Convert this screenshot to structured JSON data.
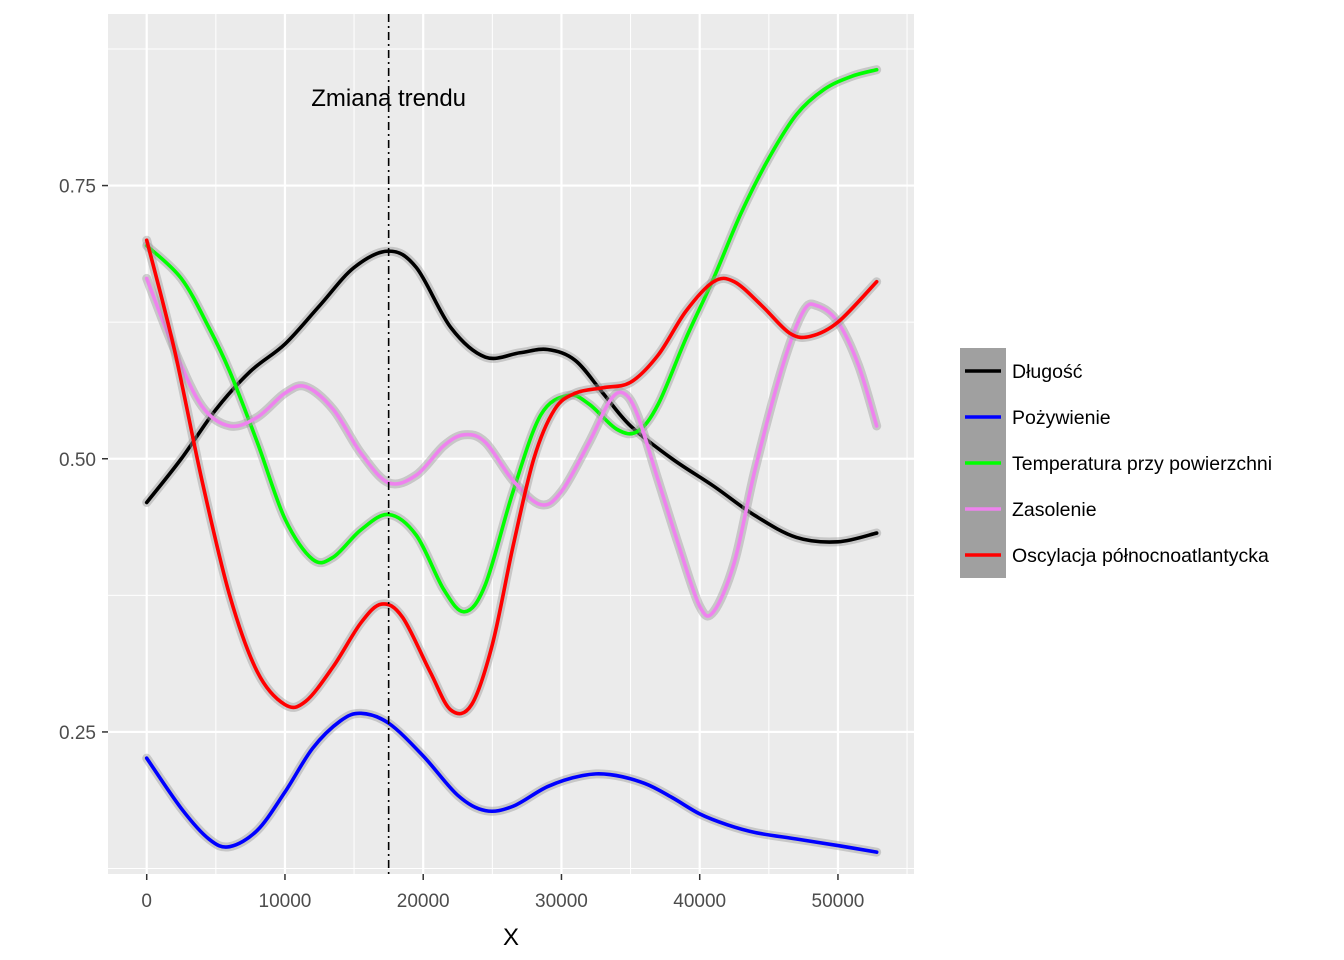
{
  "chart_data": {
    "type": "line",
    "title": "",
    "xlabel": "X",
    "ylabel": "",
    "xlim": [
      -2800,
      55500
    ],
    "ylim": [
      0.12,
      0.907
    ],
    "x_ticks": [
      0,
      10000,
      20000,
      30000,
      40000,
      50000
    ],
    "x_tick_labels": [
      "0",
      "10000",
      "20000",
      "30000",
      "40000",
      "50000"
    ],
    "y_ticks": [
      0.25,
      0.5,
      0.75
    ],
    "y_tick_labels": [
      "0.25",
      "0.50",
      "0.75"
    ],
    "grid": true,
    "legend_position": "right",
    "annotation": {
      "text": "Zmiana trendu",
      "x": 17500,
      "y": 0.83
    },
    "vline": {
      "x": 17500,
      "style": "dashdot"
    },
    "series": [
      {
        "name": "Długość",
        "color": "#000000",
        "points": [
          [
            0,
            0.46
          ],
          [
            2500,
            0.5
          ],
          [
            5000,
            0.545
          ],
          [
            7500,
            0.58
          ],
          [
            10000,
            0.605
          ],
          [
            12500,
            0.64
          ],
          [
            15000,
            0.675
          ],
          [
            17500,
            0.69
          ],
          [
            19500,
            0.675
          ],
          [
            22000,
            0.62
          ],
          [
            24500,
            0.593
          ],
          [
            27000,
            0.597
          ],
          [
            29000,
            0.6
          ],
          [
            31000,
            0.59
          ],
          [
            33000,
            0.56
          ],
          [
            35000,
            0.53
          ],
          [
            38000,
            0.5
          ],
          [
            41000,
            0.475
          ],
          [
            44000,
            0.448
          ],
          [
            47000,
            0.428
          ],
          [
            50000,
            0.424
          ],
          [
            52800,
            0.432
          ]
        ]
      },
      {
        "name": "Pożywienie",
        "color": "#0000ff",
        "points": [
          [
            0,
            0.226
          ],
          [
            2500,
            0.18
          ],
          [
            4500,
            0.152
          ],
          [
            6000,
            0.145
          ],
          [
            8000,
            0.16
          ],
          [
            10000,
            0.195
          ],
          [
            12000,
            0.235
          ],
          [
            14000,
            0.26
          ],
          [
            15500,
            0.267
          ],
          [
            17500,
            0.258
          ],
          [
            20000,
            0.228
          ],
          [
            22500,
            0.192
          ],
          [
            24500,
            0.178
          ],
          [
            26500,
            0.182
          ],
          [
            29000,
            0.2
          ],
          [
            31500,
            0.21
          ],
          [
            33500,
            0.211
          ],
          [
            36000,
            0.203
          ],
          [
            38000,
            0.19
          ],
          [
            40000,
            0.175
          ],
          [
            42000,
            0.165
          ],
          [
            44000,
            0.158
          ],
          [
            47000,
            0.152
          ],
          [
            50000,
            0.146
          ],
          [
            52800,
            0.14
          ]
        ]
      },
      {
        "name": "Temperatura przy powierzchni",
        "color": "#00ff00",
        "points": [
          [
            0,
            0.695
          ],
          [
            2500,
            0.665
          ],
          [
            4500,
            0.62
          ],
          [
            6000,
            0.58
          ],
          [
            8000,
            0.515
          ],
          [
            10000,
            0.445
          ],
          [
            12000,
            0.408
          ],
          [
            13500,
            0.41
          ],
          [
            15500,
            0.435
          ],
          [
            17500,
            0.449
          ],
          [
            19500,
            0.43
          ],
          [
            21500,
            0.38
          ],
          [
            23000,
            0.36
          ],
          [
            24500,
            0.385
          ],
          [
            26500,
            0.47
          ],
          [
            28500,
            0.54
          ],
          [
            30500,
            0.558
          ],
          [
            32000,
            0.55
          ],
          [
            34000,
            0.527
          ],
          [
            35500,
            0.525
          ],
          [
            37000,
            0.55
          ],
          [
            39000,
            0.61
          ],
          [
            41000,
            0.665
          ],
          [
            43000,
            0.725
          ],
          [
            45000,
            0.775
          ],
          [
            47000,
            0.815
          ],
          [
            49000,
            0.838
          ],
          [
            51000,
            0.85
          ],
          [
            52800,
            0.856
          ]
        ]
      },
      {
        "name": "Zasolenie",
        "color": "#ee82ee",
        "points": [
          [
            0,
            0.665
          ],
          [
            2000,
            0.6
          ],
          [
            4000,
            0.548
          ],
          [
            6000,
            0.53
          ],
          [
            8000,
            0.538
          ],
          [
            10000,
            0.56
          ],
          [
            11500,
            0.566
          ],
          [
            13500,
            0.545
          ],
          [
            15500,
            0.505
          ],
          [
            17500,
            0.478
          ],
          [
            19500,
            0.485
          ],
          [
            21500,
            0.512
          ],
          [
            23000,
            0.522
          ],
          [
            24500,
            0.515
          ],
          [
            26500,
            0.48
          ],
          [
            28500,
            0.458
          ],
          [
            30000,
            0.47
          ],
          [
            32000,
            0.515
          ],
          [
            33500,
            0.553
          ],
          [
            34500,
            0.56
          ],
          [
            35500,
            0.54
          ],
          [
            37000,
            0.48
          ],
          [
            38500,
            0.42
          ],
          [
            40000,
            0.365
          ],
          [
            41000,
            0.36
          ],
          [
            42500,
            0.405
          ],
          [
            44000,
            0.49
          ],
          [
            46000,
            0.585
          ],
          [
            47500,
            0.635
          ],
          [
            48500,
            0.64
          ],
          [
            50000,
            0.625
          ],
          [
            51500,
            0.585
          ],
          [
            52800,
            0.53
          ]
        ]
      },
      {
        "name": "Oscylacja północnoatlantycka",
        "color": "#ff0000",
        "points": [
          [
            0,
            0.7
          ],
          [
            2000,
            0.6
          ],
          [
            4000,
            0.48
          ],
          [
            6000,
            0.375
          ],
          [
            8000,
            0.305
          ],
          [
            10000,
            0.275
          ],
          [
            11500,
            0.278
          ],
          [
            13500,
            0.31
          ],
          [
            15500,
            0.35
          ],
          [
            17000,
            0.367
          ],
          [
            18500,
            0.355
          ],
          [
            20500,
            0.305
          ],
          [
            22000,
            0.27
          ],
          [
            23500,
            0.275
          ],
          [
            25000,
            0.33
          ],
          [
            26500,
            0.42
          ],
          [
            28000,
            0.5
          ],
          [
            29500,
            0.545
          ],
          [
            31000,
            0.56
          ],
          [
            33000,
            0.565
          ],
          [
            35000,
            0.57
          ],
          [
            37000,
            0.595
          ],
          [
            39000,
            0.635
          ],
          [
            41000,
            0.662
          ],
          [
            42500,
            0.662
          ],
          [
            44500,
            0.64
          ],
          [
            46500,
            0.615
          ],
          [
            48000,
            0.612
          ],
          [
            50000,
            0.625
          ],
          [
            52800,
            0.662
          ]
        ]
      }
    ]
  }
}
